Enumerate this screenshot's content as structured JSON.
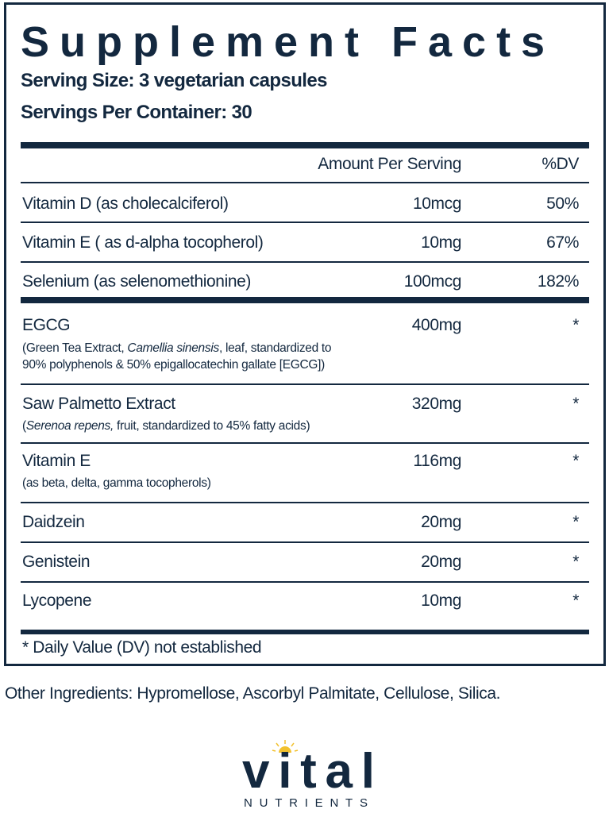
{
  "title": "Supplement Facts",
  "serving_size": "Serving Size: 3 vegetarian capsules",
  "servings_per_container": "Servings Per Container: 30",
  "header": {
    "amount": "Amount Per Serving",
    "dv": "%DV"
  },
  "rows": [
    {
      "name": "Vitamin D (as cholecalciferol)",
      "amount": "10mcg",
      "dv": "50%"
    },
    {
      "name": "Vitamin E ( as d-alpha tocopherol)",
      "amount": "10mg",
      "dv": "67%"
    },
    {
      "name": "Selenium (as selenomethionine)",
      "amount": "100mcg",
      "dv": "182%"
    },
    {
      "name": "EGCG",
      "amount": "400mg",
      "dv": "*",
      "sub1_pre": "(Green Tea Extract, ",
      "sub1_it": "Camellia sinensis",
      "sub1_post": ", leaf, standardized to",
      "sub2": " 90% polyphenols & 50% epigallocatechin gallate [EGCG])"
    },
    {
      "name": "Saw Palmetto Extract",
      "amount": "320mg",
      "dv": "*",
      "sub1_pre": "(",
      "sub1_it": "Serenoa repens,",
      "sub1_post": " fruit, standardized to 45% fatty acids)"
    },
    {
      "name": "Vitamin E",
      "amount": "116mg",
      "dv": "*",
      "sub1": "(as beta, delta, gamma tocopherols)"
    },
    {
      "name": "Daidzein",
      "amount": "20mg",
      "dv": "*"
    },
    {
      "name": "Genistein",
      "amount": "20mg",
      "dv": "*"
    },
    {
      "name": "Lycopene",
      "amount": "10mg",
      "dv": "*"
    }
  ],
  "footnote": "* Daily Value (DV) not established",
  "other_ingredients": "Other Ingredients: Hypromellose, Ascorbyl Palmitate, Cellulose, Silica.",
  "logo": {
    "word": "vital",
    "tagline": "NUTRIENTS"
  },
  "colors": {
    "ink": "#13283f",
    "sun": "#f2c12e"
  }
}
